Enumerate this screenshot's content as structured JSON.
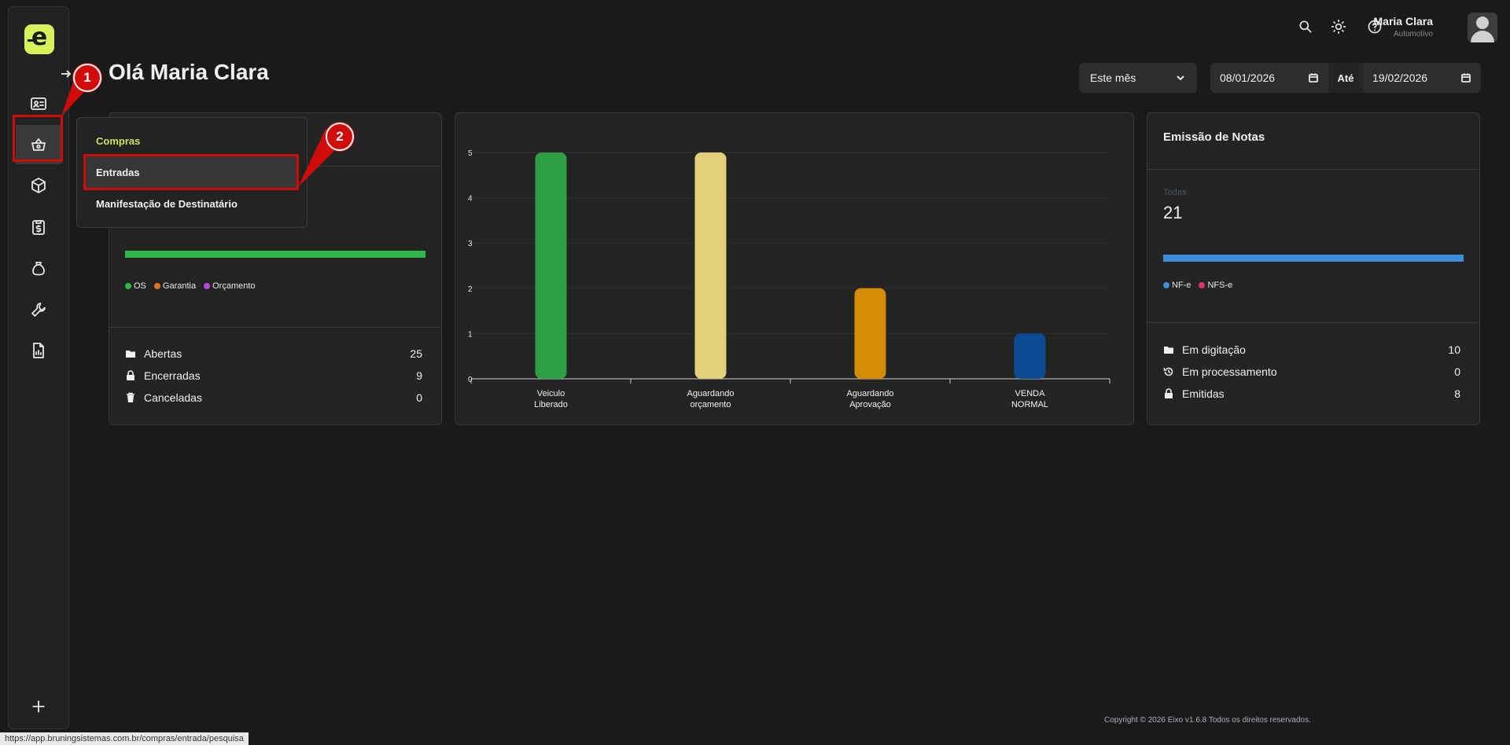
{
  "header": {
    "greeting": "Olá Maria Clara",
    "user_name": "Maria Clara",
    "user_role": "Automotivo",
    "icons": [
      "search-icon",
      "sun-icon",
      "help-icon"
    ]
  },
  "filters": {
    "period": "Este mês",
    "date_from": "08/01/2026",
    "between_label": "Até",
    "date_to": "19/02/2026"
  },
  "sidebar": {
    "items": [
      "id-card-icon",
      "basket-icon",
      "cube-icon",
      "clipboard-money-icon",
      "bag-icon",
      "wrench-icon",
      "report-icon"
    ],
    "add_icon": "plus-icon"
  },
  "dropdown": {
    "header": "Compras",
    "items": [
      "Entradas",
      "Manifestação de Destinatário"
    ]
  },
  "os_card": {
    "legend": [
      "OS",
      "Garantia",
      "Orçamento"
    ],
    "stats": [
      {
        "label": "Abertas",
        "value": "25"
      },
      {
        "label": "Encerradas",
        "value": "9"
      },
      {
        "label": "Canceladas",
        "value": "0"
      }
    ]
  },
  "chart_data": {
    "type": "bar",
    "categories": [
      [
        "Veiculo",
        "Liberado"
      ],
      [
        "Aguardando",
        "orçamento"
      ],
      [
        "Aguardando",
        "Aprovação"
      ],
      [
        "VENDA",
        "NORMAL"
      ]
    ],
    "values": [
      5,
      5,
      2,
      1
    ],
    "colors": [
      "#2e9e44",
      "#e2cf79",
      "#d68b06",
      "#0b4b93"
    ],
    "ylim": [
      0,
      5
    ],
    "yticks": [
      "0",
      "1",
      "2",
      "3",
      "4",
      "5"
    ],
    "grid": true
  },
  "notas_card": {
    "title": "Emissão de Notas",
    "sub_label": "Todas",
    "total": "21",
    "legend": [
      "NF-e",
      "NFS-e"
    ],
    "stats": [
      {
        "label": "Em digitação",
        "value": "10"
      },
      {
        "label": "Em processamento",
        "value": "0"
      },
      {
        "label": "Emitidas",
        "value": "8"
      }
    ]
  },
  "annotations": {
    "badge1": "1",
    "badge2": "2"
  },
  "footer": "Copyright © 2026 Eixo v1.6.8 Todos os direitos reservados.",
  "status_url": "https://app.bruningsistemas.com.br/compras/entrada/pesquisa",
  "colors": {
    "accent": "#d6f25a",
    "green": "#2e9e44",
    "blue": "#3b8ed8",
    "annotation": "#d10a0a"
  }
}
